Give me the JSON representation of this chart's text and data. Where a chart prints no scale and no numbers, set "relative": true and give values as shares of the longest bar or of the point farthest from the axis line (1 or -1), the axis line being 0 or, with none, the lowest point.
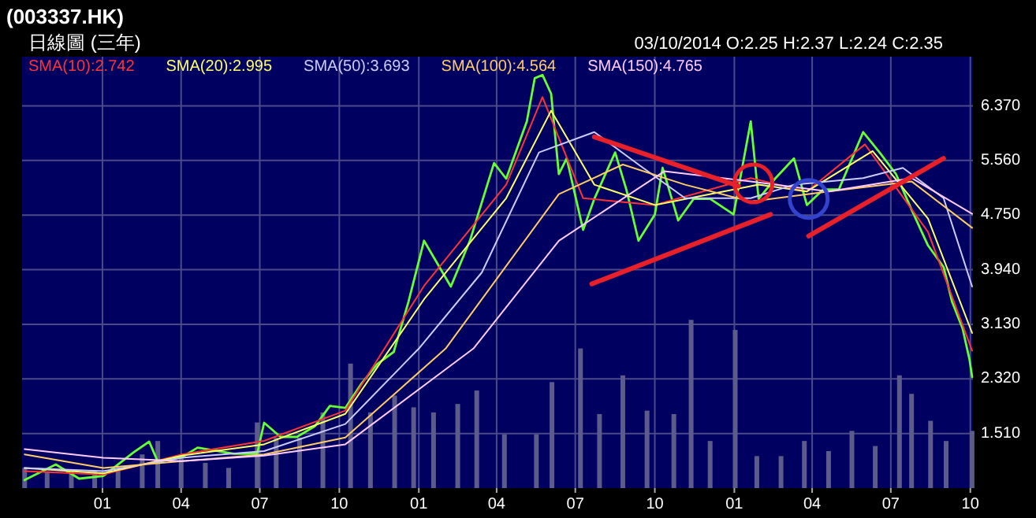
{
  "chart_data": [
    {
      "type": "line",
      "title": "(003337.HK)",
      "subtitle": "日線圖 (三年)",
      "annotations": [
        "03/10/2014  O:2.25  H:2.37  L:2.24  C:2.35"
      ],
      "xlim": [
        "2011-09-30",
        "2014-10-04"
      ],
      "ylim": [
        0.7,
        7.1
      ],
      "xticks": [
        {
          "value": "2012-01-01",
          "label": "01"
        },
        {
          "value": "2012-04-01",
          "label": "04"
        },
        {
          "value": "2012-07-01",
          "label": "07"
        },
        {
          "value": "2012-10-01",
          "label": "10"
        },
        {
          "value": "2013-01-01",
          "label": "01"
        },
        {
          "value": "2013-04-01",
          "label": "04"
        },
        {
          "value": "2013-07-01",
          "label": "07"
        },
        {
          "value": "2013-10-01",
          "label": "10"
        },
        {
          "value": "2014-01-01",
          "label": "01"
        },
        {
          "value": "2014-04-01",
          "label": "04"
        },
        {
          "value": "2014-07-01",
          "label": "07"
        },
        {
          "value": "2014-10-01",
          "label": "10"
        }
      ],
      "yticks": [
        {
          "value": 1.51,
          "label": "1.510"
        },
        {
          "value": 2.32,
          "label": "2.320"
        },
        {
          "value": 3.13,
          "label": "3.130"
        },
        {
          "value": 3.94,
          "label": "3.940"
        },
        {
          "value": 4.75,
          "label": "4.750"
        },
        {
          "value": 5.56,
          "label": "5.560"
        },
        {
          "value": 6.37,
          "label": "6.370"
        }
      ],
      "grid": true,
      "legend": "top left",
      "series": [
        {
          "color": "#66ff33",
          "x": [
            "2011-10-03",
            "2011-11-08",
            "2011-12-05",
            "2012-01-02",
            "2012-02-06",
            "2012-02-24",
            "2012-03-05",
            "2012-04-02",
            "2012-04-20",
            "2012-06-01",
            "2012-06-28",
            "2012-07-06",
            "2012-07-25",
            "2012-08-13",
            "2012-09-03",
            "2012-09-20",
            "2012-10-08",
            "2012-10-26",
            "2012-11-14",
            "2012-12-03",
            "2012-12-20",
            "2013-01-07",
            "2013-02-07",
            "2013-03-01",
            "2013-03-29",
            "2013-04-12",
            "2013-05-06",
            "2013-05-15",
            "2013-05-24",
            "2013-06-03",
            "2013-06-12",
            "2013-06-21",
            "2013-07-10",
            "2013-07-23",
            "2013-08-16",
            "2013-08-29",
            "2013-09-12",
            "2013-10-01",
            "2013-10-10",
            "2013-10-28",
            "2013-11-15",
            "2013-12-04",
            "2013-12-31",
            "2014-01-20",
            "2014-01-29",
            "2014-02-17",
            "2014-03-11",
            "2014-03-26",
            "2014-04-14",
            "2014-05-02",
            "2014-05-30",
            "2014-06-18",
            "2014-07-07",
            "2014-07-25",
            "2014-08-13",
            "2014-08-31",
            "2014-09-10",
            "2014-09-22",
            "2014-09-30",
            "2014-10-03"
          ],
          "values": [
            0.82,
            1.05,
            0.84,
            0.88,
            1.23,
            1.39,
            1.09,
            1.16,
            1.3,
            1.21,
            1.21,
            1.67,
            1.46,
            1.46,
            1.62,
            1.92,
            1.89,
            2.24,
            2.54,
            2.72,
            3.46,
            4.37,
            3.69,
            4.37,
            5.52,
            5.29,
            6.14,
            6.78,
            6.83,
            6.55,
            5.36,
            5.59,
            4.53,
            4.99,
            5.68,
            5.13,
            4.37,
            4.76,
            5.45,
            4.67,
            4.99,
            4.99,
            4.76,
            6.14,
            4.99,
            5.29,
            5.59,
            4.9,
            5.13,
            5.13,
            5.98,
            5.68,
            5.36,
            4.83,
            4.3,
            3.98,
            3.46,
            3.07,
            2.61,
            2.35
          ]
        },
        {
          "name": "SMA(10):2.742",
          "color": "#ff3333",
          "x": [
            "2011-10-03",
            "2012-01-02",
            "2012-04-02",
            "2012-07-06",
            "2012-10-08",
            "2013-01-07",
            "2013-04-12",
            "2013-05-24",
            "2013-07-10",
            "2013-10-01",
            "2014-01-20",
            "2014-03-26",
            "2014-06-01",
            "2014-08-13",
            "2014-10-03"
          ],
          "values": [
            0.95,
            0.9,
            1.2,
            1.4,
            1.85,
            3.7,
            5.2,
            6.5,
            5.0,
            4.9,
            5.3,
            5.1,
            5.8,
            4.5,
            2.74
          ]
        },
        {
          "name": "SMA(20):2.995",
          "color": "#ffff66",
          "x": [
            "2011-10-03",
            "2012-01-02",
            "2012-04-02",
            "2012-07-06",
            "2012-10-08",
            "2013-01-07",
            "2013-04-12",
            "2013-06-03",
            "2013-07-23",
            "2013-10-01",
            "2014-01-29",
            "2014-03-26",
            "2014-06-10",
            "2014-08-13",
            "2014-10-03"
          ],
          "values": [
            1.0,
            0.92,
            1.18,
            1.35,
            1.8,
            3.5,
            5.0,
            6.3,
            5.2,
            4.9,
            5.2,
            5.1,
            5.7,
            4.7,
            3.0
          ]
        },
        {
          "name": "SMA(50):3.693",
          "color": "#ccccff",
          "x": [
            "2011-10-03",
            "2012-01-02",
            "2012-04-02",
            "2012-07-06",
            "2012-10-08",
            "2013-01-01",
            "2013-03-15",
            "2013-05-20",
            "2013-07-23",
            "2013-09-12",
            "2013-11-05",
            "2014-01-20",
            "2014-03-11",
            "2014-05-30",
            "2014-07-15",
            "2014-08-31",
            "2014-10-03"
          ],
          "values": [
            1.0,
            0.95,
            1.15,
            1.25,
            1.65,
            2.77,
            3.9,
            5.68,
            5.98,
            5.5,
            5.0,
            5.0,
            5.2,
            5.3,
            5.45,
            5.0,
            3.69
          ]
        },
        {
          "name": "SMA(100):4.564",
          "color": "#ffcc66",
          "x": [
            "2011-10-03",
            "2012-01-02",
            "2012-04-02",
            "2012-07-06",
            "2012-10-08",
            "2013-02-01",
            "2013-06-12",
            "2013-08-25",
            "2013-11-05",
            "2014-01-20",
            "2014-04-20",
            "2014-07-25",
            "2014-10-03"
          ],
          "values": [
            1.2,
            1.0,
            1.1,
            1.2,
            1.45,
            2.77,
            5.06,
            5.5,
            5.2,
            4.95,
            5.1,
            5.25,
            4.56
          ]
        },
        {
          "name": "SMA(150):4.765",
          "color": "#ffccff",
          "x": [
            "2011-10-03",
            "2012-01-02",
            "2012-04-02",
            "2012-07-06",
            "2012-10-08",
            "2013-03-05",
            "2013-06-12",
            "2013-10-12",
            "2014-01-20",
            "2014-04-20",
            "2014-07-25",
            "2014-10-03"
          ],
          "values": [
            1.28,
            1.15,
            1.1,
            1.18,
            1.35,
            2.77,
            4.37,
            5.4,
            5.25,
            5.1,
            5.3,
            4.77
          ]
        },
        {
          "color": "#e8202a",
          "x": [
            "2013-07-23",
            "2014-01-06"
          ],
          "values": [
            5.91,
            5.18
          ]
        },
        {
          "color": "#e8202a",
          "x": [
            "2013-07-20",
            "2014-02-12"
          ],
          "values": [
            3.73,
            4.76
          ]
        },
        {
          "color": "#e8202a",
          "x": [
            "2014-03-28",
            "2014-08-31"
          ],
          "values": [
            4.44,
            5.59
          ]
        },
        {
          "type": "scatter",
          "marker": "circle",
          "color": "#e8202a",
          "x": [
            "2014-01-23"
          ],
          "values": [
            5.22
          ]
        },
        {
          "type": "scatter",
          "marker": "circle",
          "color": "#3344cc",
          "x": [
            "2014-03-28"
          ],
          "values": [
            4.99
          ]
        }
      ]
    },
    {
      "type": "bar",
      "relative": true,
      "xlim": [
        "2011-09-30",
        "2014-10-04"
      ],
      "series": [
        {
          "color": "#5c5c8c",
          "x": [
            "2011-10-03",
            "2011-10-29",
            "2011-11-26",
            "2011-12-23",
            "2012-01-19",
            "2012-02-16",
            "2012-03-05",
            "2012-04-01",
            "2012-04-29",
            "2012-05-26",
            "2012-06-28",
            "2012-07-20",
            "2012-08-16",
            "2012-09-12",
            "2012-10-14",
            "2012-11-06",
            "2012-12-04",
            "2012-12-26",
            "2013-01-18",
            "2013-02-15",
            "2013-03-09",
            "2013-04-10",
            "2013-05-17",
            "2013-06-04",
            "2013-07-07",
            "2013-07-29",
            "2013-08-25",
            "2013-09-22",
            "2013-10-23",
            "2013-11-12",
            "2013-12-04",
            "2014-01-02",
            "2014-01-27",
            "2014-02-24",
            "2014-03-23",
            "2014-04-20",
            "2014-05-17",
            "2014-06-13",
            "2014-07-11",
            "2014-07-25",
            "2014-08-16",
            "2014-09-03",
            "2014-10-03"
          ],
          "values": [
            0.12,
            0.1,
            0.1,
            0.1,
            0.12,
            0.2,
            0.28,
            0.18,
            0.15,
            0.12,
            0.39,
            0.3,
            0.3,
            0.45,
            0.74,
            0.45,
            0.55,
            0.48,
            0.45,
            0.5,
            0.58,
            0.32,
            0.32,
            0.63,
            0.83,
            0.44,
            0.67,
            0.46,
            0.44,
            1,
            0.28,
            0.94,
            0.19,
            0.19,
            0.28,
            0.22,
            0.34,
            0.25,
            0.67,
            0.56,
            0.4,
            0.28,
            0.34
          ]
        }
      ]
    }
  ]
}
